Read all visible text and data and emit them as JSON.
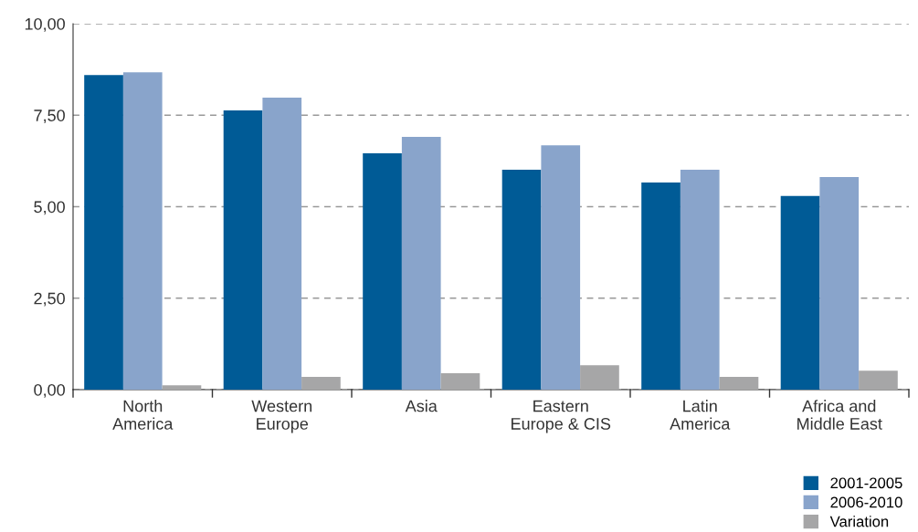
{
  "chart_data": {
    "type": "bar",
    "categories": [
      "North\nAmerica",
      "Western\nEurope",
      "Asia",
      "Eastern\nEurope & CIS",
      "Latin\nAmerica",
      "Africa and\nMiddle East"
    ],
    "series": [
      {
        "name": "2001-2005",
        "color": "#005b96",
        "values": [
          8.6,
          7.63,
          6.46,
          6.01,
          5.66,
          5.29
        ]
      },
      {
        "name": "2006-2010",
        "color": "#89a4cb",
        "values": [
          8.67,
          7.98,
          6.91,
          6.68,
          6.01,
          5.81
        ]
      },
      {
        "name": "Variation",
        "color": "#a6a6a7",
        "values": [
          0.12,
          0.35,
          0.45,
          0.67,
          0.35,
          0.52
        ]
      }
    ],
    "ylim": [
      0,
      10
    ],
    "yticks": [
      {
        "value": 0,
        "label": "0,00"
      },
      {
        "value": 2.5,
        "label": "2,50"
      },
      {
        "value": 5,
        "label": "5,00"
      },
      {
        "value": 7.5,
        "label": "7,50"
      },
      {
        "value": 10,
        "label": "10,00"
      }
    ],
    "grid": "y",
    "legend": "bottom right"
  }
}
